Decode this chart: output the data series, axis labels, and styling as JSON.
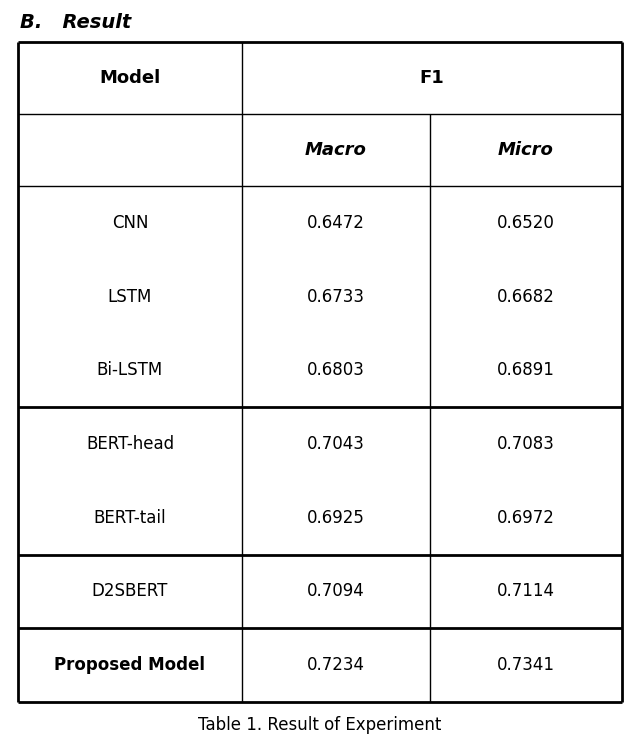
{
  "title_section": "B.   Result",
  "caption": "Table 1. Result of Experiment",
  "col_header_1": "Model",
  "col_header_2": "F1",
  "col_subheader_macro": "Macro",
  "col_subheader_micro": "Micro",
  "rows": [
    {
      "model": "CNN",
      "macro": "0.6472",
      "micro": "0.6520",
      "bold": false
    },
    {
      "model": "LSTM",
      "macro": "0.6733",
      "micro": "0.6682",
      "bold": false
    },
    {
      "model": "Bi-LSTM",
      "macro": "0.6803",
      "micro": "0.6891",
      "bold": false
    },
    {
      "model": "BERT-head",
      "macro": "0.7043",
      "micro": "0.7083",
      "bold": false
    },
    {
      "model": "BERT-tail",
      "macro": "0.6925",
      "micro": "0.6972",
      "bold": false
    },
    {
      "model": "D2SBERT",
      "macro": "0.7094",
      "micro": "0.7114",
      "bold": false
    },
    {
      "model": "Proposed Model",
      "macro": "0.7234",
      "micro": "0.7341",
      "bold": true
    }
  ],
  "figsize": [
    6.4,
    7.37
  ],
  "dpi": 100,
  "background": "#ffffff",
  "text_color": "#000000",
  "line_color": "#000000",
  "header_font_size": 13,
  "cell_font_size": 12,
  "title_font_size": 14,
  "caption_font_size": 12
}
